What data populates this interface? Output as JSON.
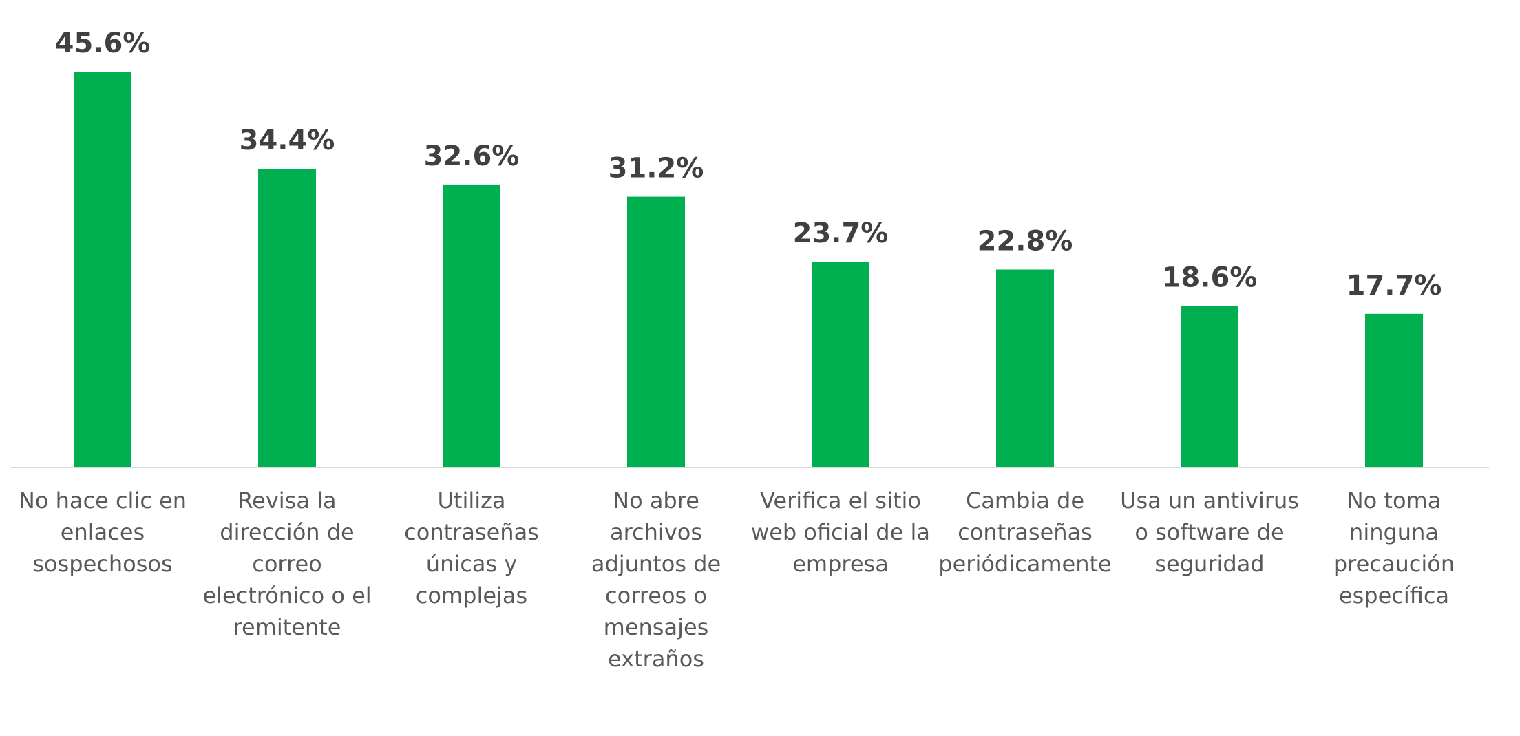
{
  "chart_data": {
    "type": "bar",
    "title": "",
    "xlabel": "",
    "ylabel": "",
    "ylim": [
      0,
      45.6
    ],
    "grid": false,
    "legend": "none",
    "value_suffix": "%",
    "colors": {
      "bar": "#00B050",
      "axis": "#D9D9D9",
      "value_label": "#404040",
      "category_label": "#595959"
    },
    "categories": [
      "No hace clic en enlaces sospechosos",
      "Revisa la dirección de correo electrónico o el remitente",
      "Utiliza contraseñas únicas y complejas",
      "No abre archivos adjuntos de correos o mensajes extraños",
      "Verifica el sitio web oficial de la empresa",
      "Cambia de contraseñas periódicamente",
      "Usa un antivirus o software de seguridad",
      "No toma ninguna precaución específica"
    ],
    "category_lines": [
      [
        "No hace clic en",
        "enlaces",
        "sospechosos"
      ],
      [
        "Revisa la",
        "dirección de",
        "correo",
        "electrónico o el",
        "remitente"
      ],
      [
        "Utiliza",
        "contraseñas",
        "únicas y",
        "complejas"
      ],
      [
        "No abre",
        "archivos",
        "adjuntos de",
        "correos o",
        "mensajes",
        "extraños"
      ],
      [
        "Verifica el sitio",
        "web oficial de la",
        "empresa"
      ],
      [
        "Cambia de",
        "contraseñas",
        "periódicamente"
      ],
      [
        "Usa un antivirus",
        "o software de",
        "seguridad"
      ],
      [
        "No toma",
        "ninguna",
        "precaución",
        "específica"
      ]
    ],
    "values": [
      45.6,
      34.4,
      32.6,
      31.2,
      23.7,
      22.8,
      18.6,
      17.7
    ],
    "data_labels": [
      "45.6%",
      "34.4%",
      "32.6%",
      "31.2%",
      "23.7%",
      "22.8%",
      "18.6%",
      "17.7%"
    ]
  }
}
